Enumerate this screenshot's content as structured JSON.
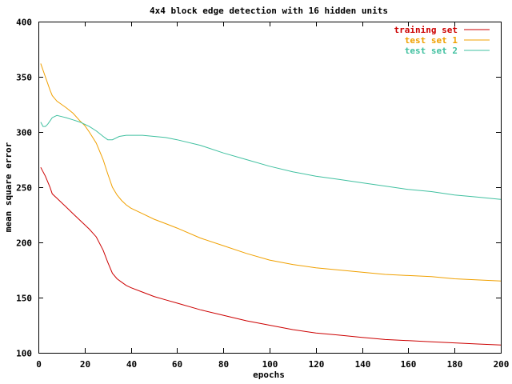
{
  "chart_data": {
    "type": "line",
    "title": "4x4 block edge detection with 16 hidden units",
    "xlabel": "epochs",
    "ylabel": "mean square error",
    "xlim": [
      0,
      200
    ],
    "ylim": [
      100,
      400
    ],
    "xticks": [
      0,
      20,
      40,
      60,
      80,
      100,
      120,
      140,
      160,
      180,
      200
    ],
    "yticks": [
      100,
      150,
      200,
      250,
      300,
      350,
      400
    ],
    "grid": false,
    "legend_position": "top-right",
    "series": [
      {
        "name": "training set",
        "color": "#cc0000",
        "x": [
          1,
          3,
          5,
          6,
          8,
          10,
          12,
          15,
          18,
          20,
          22,
          25,
          28,
          30,
          32,
          34,
          36,
          38,
          40,
          45,
          50,
          55,
          60,
          70,
          80,
          90,
          100,
          110,
          120,
          130,
          140,
          150,
          160,
          170,
          180,
          190,
          200
        ],
        "y": [
          268,
          260,
          250,
          244,
          240,
          236,
          232,
          226,
          220,
          216,
          212,
          205,
          193,
          182,
          172,
          167,
          164,
          161,
          159,
          155,
          151,
          148,
          145,
          139,
          134,
          129,
          125,
          121,
          118,
          116,
          114,
          112,
          111,
          110,
          109,
          108,
          107
        ]
      },
      {
        "name": "test set 1",
        "color": "#f0a000",
        "x": [
          1,
          3,
          5,
          6,
          8,
          10,
          12,
          15,
          18,
          20,
          22,
          25,
          28,
          30,
          32,
          34,
          36,
          38,
          40,
          45,
          50,
          55,
          60,
          70,
          80,
          90,
          100,
          110,
          120,
          130,
          140,
          150,
          160,
          170,
          180,
          190,
          200
        ],
        "y": [
          362,
          350,
          338,
          333,
          328,
          325,
          322,
          317,
          310,
          306,
          300,
          290,
          275,
          262,
          250,
          243,
          238,
          234,
          231,
          226,
          221,
          217,
          213,
          204,
          197,
          190,
          184,
          180,
          177,
          175,
          173,
          171,
          170,
          169,
          167,
          166,
          165
        ]
      },
      {
        "name": "test set 2",
        "color": "#40c0a0",
        "x": [
          1,
          2,
          3,
          4,
          5,
          6,
          7,
          8,
          10,
          12,
          15,
          18,
          20,
          22,
          25,
          28,
          30,
          32,
          35,
          38,
          40,
          45,
          50,
          55,
          60,
          70,
          80,
          90,
          100,
          110,
          120,
          130,
          140,
          150,
          160,
          170,
          180,
          190,
          200
        ],
        "y": [
          309,
          305,
          305,
          307,
          310,
          313,
          314,
          315,
          314,
          313,
          311,
          309,
          307,
          305,
          301,
          296,
          293,
          293,
          296,
          297,
          297,
          297,
          296,
          295,
          293,
          288,
          281,
          275,
          269,
          264,
          260,
          257,
          254,
          251,
          248,
          246,
          243,
          241,
          239
        ]
      }
    ]
  }
}
